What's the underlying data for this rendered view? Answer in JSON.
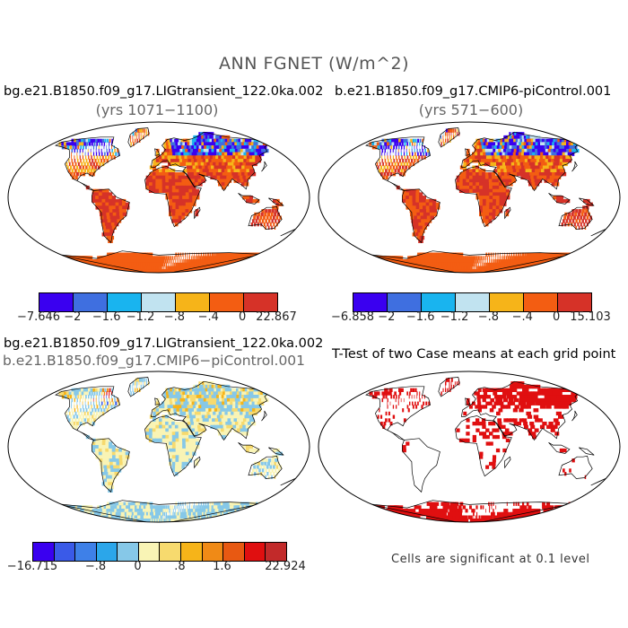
{
  "title": "ANN FGNET (W/m^2)",
  "panels": [
    {
      "title": "bg.e21.B1850.f09_g17.LIGtransient_122.0ka.002",
      "subtitle": "(yrs 1071−1100)"
    },
    {
      "title": "b.e21.B1850.f09_g17.CMIP6-piControl.001",
      "subtitle": "(yrs 571−600)"
    },
    {
      "title": "bg.e21.B1850.f09_g17.LIGtransient_122.0ka.002",
      "subtitle": "b.e21.B1850.f09_g17.CMIP6−piControl.001"
    },
    {
      "title": "T-Test of two Case means at each grid point",
      "subtitle": ""
    }
  ],
  "note": "Cells are significant at 0.1 level",
  "chart_data": [
    {
      "type": "heatmap",
      "title": "bg.e21.B1850.f09_g17.LIGtransient_122.0ka.002",
      "subtitle": "(yrs 1071−1100)",
      "colorbar_labels": [
        "−7.646",
        "−2",
        "−1.6",
        "−1.2",
        "−.8",
        "−.4",
        "0",
        "22.867"
      ],
      "colors": [
        "#3a00f0",
        "#3f6fe0",
        "#19b4ef",
        "#c1e3f0",
        "#f6b419",
        "#f35d12",
        "#d63228"
      ]
    },
    {
      "type": "heatmap",
      "title": "b.e21.B1850.f09_g17.CMIP6-piControl.001",
      "subtitle": "(yrs 571−600)",
      "colorbar_labels": [
        "−6.858",
        "−2",
        "−1.6",
        "−1.2",
        "−.8",
        "−.4",
        "0",
        "15.103"
      ],
      "colors": [
        "#3a00f0",
        "#3f6fe0",
        "#19b4ef",
        "#c1e3f0",
        "#f6b419",
        "#f35d12",
        "#d63228"
      ]
    },
    {
      "type": "heatmap",
      "title": "bg.e21.B1850.f09_g17.LIGtransient_122.0ka.002",
      "subtitle": "b.e21.B1850.f09_g17.CMIP6−piControl.001",
      "colorbar_labels": [
        "−16.715",
        "−.8",
        "0",
        ".8",
        "1.6",
        "22.924"
      ],
      "colors": [
        "#3a00f0",
        "#3a5ae8",
        "#3e80e8",
        "#2ba6ea",
        "#86c8e8",
        "#f9f4b5",
        "#f7da6e",
        "#f6b419",
        "#f08a16",
        "#e85912",
        "#e00f10",
        "#c22a2a"
      ]
    },
    {
      "type": "heatmap",
      "title": "T-Test of two Case means at each grid point",
      "note": "Cells are significant at 0.1 level",
      "colors": [
        "#e00f10"
      ]
    }
  ]
}
